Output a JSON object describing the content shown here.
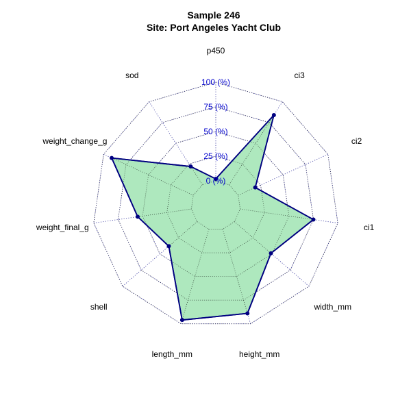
{
  "chart_data": {
    "type": "radar",
    "title": "Sample 246",
    "subtitle": "Site: Port Angeles Yacht Club",
    "axes": [
      "p450",
      "ci3",
      "ci2",
      "ci1",
      "width_mm",
      "height_mm",
      "length_mm",
      "shell",
      "weight_final_g",
      "weight_change_g",
      "sod"
    ],
    "series": [
      {
        "values": [
          2,
          84,
          19,
          75,
          49,
          89,
          96,
          38,
          55,
          91,
          22
        ]
      }
    ],
    "rlim": [
      0,
      100
    ],
    "ring_values": [
      0,
      25,
      50,
      75,
      100
    ],
    "ring_labels": [
      "0 (%)",
      "25 (%)",
      "50 (%)",
      "75 (%)",
      "100 (%)"
    ],
    "colors": {
      "fill": "#aee8be",
      "line": "#000080",
      "grid": "#4a4aa8",
      "ring_label": "#0000cc"
    },
    "legend": "none"
  }
}
